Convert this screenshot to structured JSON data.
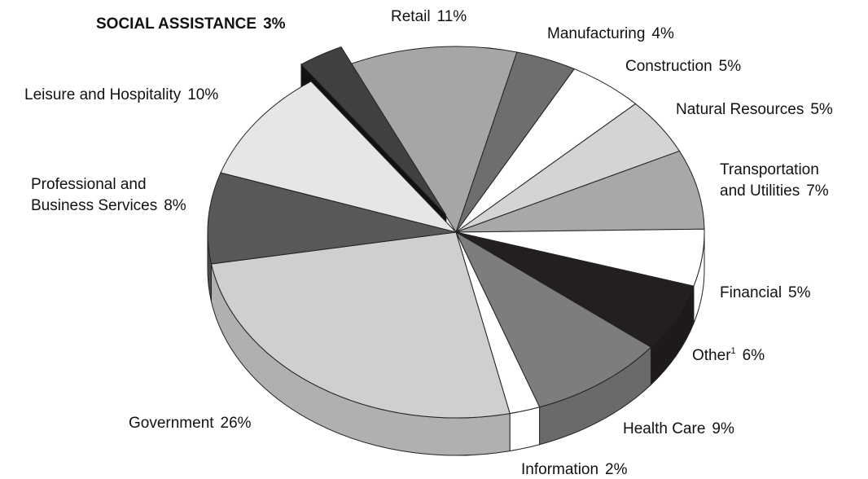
{
  "chart_data": {
    "type": "pie3d",
    "categories": [
      "Retail",
      "Manufacturing",
      "Construction",
      "Natural Resources",
      "Transportation\nand Utilities",
      "Financial",
      "Other",
      "Health Care",
      "Information",
      "Government",
      "Professional and\nBusiness Services",
      "Leisure and Hospitality",
      "SOCIAL ASSISTANCE"
    ],
    "superscripts": [
      null,
      null,
      null,
      null,
      null,
      null,
      "1",
      null,
      null,
      null,
      null,
      null,
      null
    ],
    "values": [
      11,
      4,
      5,
      5,
      7,
      5,
      6,
      9,
      2,
      26,
      8,
      10,
      3
    ],
    "value_labels": [
      "11%",
      "4%",
      "5%",
      "5%",
      "7%",
      "5%",
      "6%",
      "9%",
      "2%",
      "26%",
      "8%",
      "10%",
      "3%"
    ],
    "colors": [
      "#a6a6a8",
      "#6e6e70",
      "#ffffff",
      "#d4d4d6",
      "#a8a8aa",
      "#ffffff",
      "#231f20",
      "#7d7d80",
      "#ffffff",
      "#cfcfd1",
      "#58585a",
      "#e6e6e8",
      "#404042"
    ],
    "exploded": [
      false,
      false,
      false,
      false,
      false,
      false,
      false,
      false,
      false,
      false,
      false,
      false,
      true
    ]
  }
}
